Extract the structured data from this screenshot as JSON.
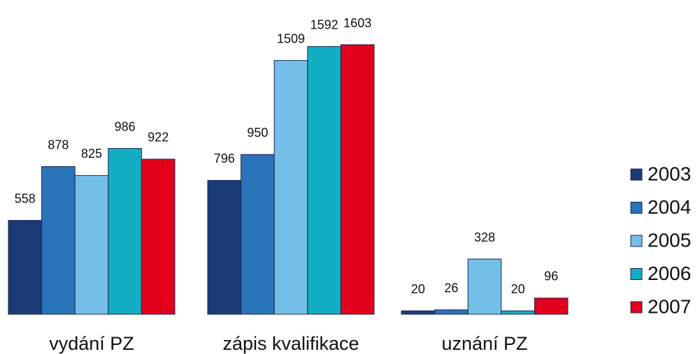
{
  "chart_data": {
    "type": "bar",
    "categories": [
      "vydání PZ",
      "zápis kvalifikace",
      "uznání PZ"
    ],
    "series": [
      {
        "name": "2003",
        "color": "#1b3a78",
        "values": [
          558,
          796,
          20
        ]
      },
      {
        "name": "2004",
        "color": "#2a74b9",
        "values": [
          878,
          950,
          26
        ]
      },
      {
        "name": "2005",
        "color": "#74bfe8",
        "values": [
          825,
          1509,
          328
        ]
      },
      {
        "name": "2006",
        "color": "#13adc4",
        "values": [
          986,
          1592,
          20
        ]
      },
      {
        "name": "2007",
        "color": "#e2001a",
        "values": [
          922,
          1603,
          96
        ]
      }
    ],
    "legend": "right"
  }
}
